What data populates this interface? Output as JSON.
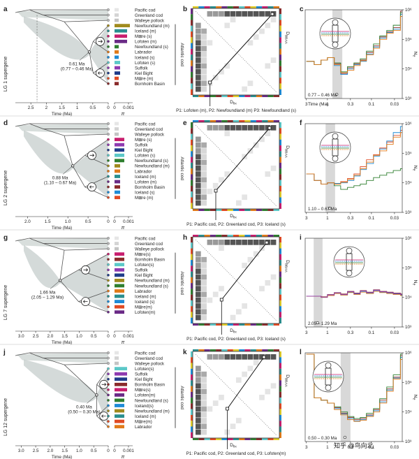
{
  "colors": {
    "frame": "#333333",
    "tree_fill": "#b8c2bf",
    "tree_line": "#555555",
    "heat_dark": "#555555",
    "heat_light": "#e4e4e4",
    "gray_band": "#d8d8d8",
    "pacific": "#e6e6e6",
    "greenland": "#d4d4d4",
    "walleye": "#c4c4c4",
    "newfoundland_m": "#a08a1e",
    "iceland_m": "#2a8f8f",
    "more_s": "#c81e6e",
    "lofoten_m": "#6a2a86",
    "newfoundland_s": "#2f7f2f",
    "labrador": "#e07a1a",
    "iceland_s": "#1e8bd6",
    "lofoten_s": "#5cc8c8",
    "suffolk": "#8e3ab0",
    "kiel": "#1f3c8a",
    "more_m": "#e04a24",
    "bornholm": "#8a2b2b"
  },
  "panels": [
    {
      "supergene": "LG 1 supergene",
      "labels": {
        "tree": "a",
        "matrix": "b",
        "ne": "c"
      },
      "species": [
        "Pacific cod",
        "Greenland cod",
        "Walleye pollock",
        "Newfoundland (m)",
        "Iceland (m)",
        "M⊠re (s)",
        "Lofoten (m)",
        "Newfoundland (s)",
        "Labrador",
        "Iceland (s)",
        "Lofoten (s)",
        "Suffolk",
        "Kiel Bight",
        "M⊠re (m)",
        "Bornholm Basin"
      ],
      "species_colors": [
        "pacific",
        "greenland",
        "walleye",
        "newfoundland_m",
        "iceland_m",
        "more_s",
        "lofoten_m",
        "newfoundland_s",
        "labrador",
        "iceland_s",
        "lofoten_s",
        "suffolk",
        "kiel",
        "more_m",
        "bornholm"
      ],
      "pi_values": [
        0.0003,
        0.0003,
        0.0003,
        0.0011,
        0.0009,
        0.0009,
        0.0009,
        0.0003,
        0.0003,
        0.0003,
        0.0004,
        0.0004,
        0.0004,
        0.0003,
        0.0003
      ],
      "date": "0.61 Ma",
      "date_range": "(0.77 – 0.46 Ma)",
      "date_ma": 0.61,
      "tree_max": 3.0,
      "tree_ticks": [
        "2.5",
        "2",
        "1.5",
        "1",
        "0.5",
        "0"
      ],
      "tree_tick_vals": [
        2.5,
        2.0,
        1.5,
        1.0,
        0.5,
        0.0
      ],
      "dashed_ma": 2.3,
      "atlantic_label": "Atlantic cod",
      "p_line": "P1: Lofoten (m), P2: Newfoundland (m) P3: Newfoundland (s)",
      "ne_range_label": "0.77 – 0.46 Ma",
      "band": [
        0.77,
        0.46
      ]
    },
    {
      "supergene": "LG 2 supergene",
      "labels": {
        "tree": "d",
        "matrix": "e",
        "ne": "f"
      },
      "species": [
        "Pacific cod",
        "Greenland cod",
        "Walleye pollock",
        "M⊠re (s)",
        "Suffolk",
        "Kiel Bight",
        "Lofoten (s)",
        "Newfoundland (s)",
        "Newfoundland (m)",
        "Labrador",
        "Iceland (m)",
        "Lofoten (m)",
        "Bornholm Basin",
        "Iceland (s)",
        "M⊠re (m)"
      ],
      "species_colors": [
        "pacific",
        "greenland",
        "walleye",
        "more_s",
        "suffolk",
        "kiel",
        "lofoten_s",
        "newfoundland_s",
        "newfoundland_m",
        "labrador",
        "iceland_m",
        "lofoten_m",
        "bornholm",
        "iceland_s",
        "more_m"
      ],
      "pi_values": [
        0.0003,
        0.0003,
        0.0003,
        0.0007,
        0.0007,
        0.0007,
        0.0007,
        0.0007,
        0.0004,
        0.0004,
        0.0004,
        0.0004,
        0.0004,
        0.0004,
        0.0004
      ],
      "date": "0.88 Ma",
      "date_range": "(1.10 – 0.67 Ma)",
      "date_ma": 0.88,
      "tree_max": 2.3,
      "tree_ticks": [
        "2.0",
        "1.5",
        "1.0",
        "0.5",
        "0"
      ],
      "tree_tick_vals": [
        2.0,
        1.5,
        1.0,
        0.5,
        0.0
      ],
      "dashed_ma": null,
      "atlantic_label": "Atlantic cod",
      "p_line": "P1: Pacific cod, P2: Greenland cod, P3:   Iceland (s)",
      "ne_range_label": "1.10 – 0.67 Ma",
      "band": [
        1.1,
        0.67
      ]
    },
    {
      "supergene": "LG 7 supergene",
      "labels": {
        "tree": "g",
        "matrix": "h",
        "ne": "i"
      },
      "species": [
        "Pacific cod",
        "Greenland cod",
        "Walleye pollock",
        "M⊠re(s)",
        "Bornholm Basin",
        "Lofoten(s)",
        "Suffolk",
        "Kiel Bight",
        "Newfoundland (m)",
        "Newfoundland (s)",
        "Labrador",
        "Iceland (m)",
        "Iceland (s)",
        "M⊠re(m)",
        "Lofoten(m)"
      ],
      "species_colors": [
        "pacific",
        "greenland",
        "walleye",
        "more_s",
        "bornholm",
        "lofoten_s",
        "suffolk",
        "kiel",
        "newfoundland_m",
        "newfoundland_s",
        "labrador",
        "iceland_m",
        "iceland_s",
        "more_m",
        "lofoten_m"
      ],
      "pi_values": [
        0.0003,
        0.0003,
        0.0003,
        0.0007,
        0.0007,
        0.0007,
        0.0007,
        0.0007,
        0.0007,
        0.0007,
        0.0007,
        0.0007,
        0.0007,
        0.0007,
        0.0007
      ],
      "date": "1.66 Ma",
      "date_range": "(2.05 – 1.29 Ma)",
      "date_ma": 1.66,
      "tree_max": 3.2,
      "tree_ticks": [
        "3.0",
        "2.5",
        "2.0",
        "1.5",
        "1.0",
        "0.5",
        "0"
      ],
      "tree_tick_vals": [
        3.0,
        2.5,
        2.0,
        1.5,
        1.0,
        0.5,
        0.0
      ],
      "dashed_ma": null,
      "atlantic_label": "Atlantic cod",
      "p_line": "P1: Pacific cod, P2: Greenland cod, P3:   Iceland (s)",
      "ne_range_label": "2.05 – 1.29 Ma",
      "band": [
        2.05,
        1.29
      ]
    },
    {
      "supergene": "LG 12 supergene",
      "labels": {
        "tree": "j",
        "matrix": "k",
        "ne": "l"
      },
      "species": [
        "Pacific cod",
        "Greenland cod",
        "Walleye pollock",
        "Lofoten(s)",
        "Suffolk",
        "Kiel Bight",
        "Bornholm Basin",
        "M⊠re(s)",
        "Lofoten(m)",
        "Newfoundland (s)",
        "Iceland(s)",
        "Newfoundland (m)",
        "Iceland (m)",
        "M⊠re(m)",
        "Labrador"
      ],
      "species_colors": [
        "pacific",
        "greenland",
        "walleye",
        "lofoten_s",
        "suffolk",
        "kiel",
        "bornholm",
        "more_s",
        "lofoten_m",
        "newfoundland_s",
        "iceland_s",
        "newfoundland_m",
        "iceland_m",
        "more_m",
        "labrador"
      ],
      "pi_values": [
        0.0003,
        0.0003,
        0.0003,
        0.0009,
        0.0009,
        0.0009,
        0.0009,
        0.0009,
        0.0007,
        0.0007,
        0.0007,
        0.0007,
        0.0007,
        0.0007,
        0.0007
      ],
      "date": "0.40 Ma",
      "date_range": "(0.50 – 0.30 Ma)",
      "date_ma": 0.4,
      "tree_max": 3.2,
      "tree_ticks": [
        "3.0",
        "2.5",
        "2.0",
        "1.5",
        "1.0",
        "0.5",
        "0"
      ],
      "tree_tick_vals": [
        3.0,
        2.5,
        2.0,
        1.5,
        1.0,
        0.5,
        0.0
      ],
      "dashed_ma": null,
      "atlantic_label": "Atlantic cod",
      "p_line": "P1: Pacific cod, P2: Greenland cod, P3:   Lofoten(m)",
      "ne_range_label": "0.50 – 0.30 Ma",
      "band": [
        0.5,
        0.3
      ]
    }
  ],
  "axes": {
    "time_label": "Time (Ma)",
    "pi_label": "π",
    "pi_ticks": [
      "0",
      "0.001"
    ],
    "pi_tick_vals": [
      0,
      0.001
    ],
    "dfix_label": "D",
    "dfix_sub": "fix",
    "dbaba_label": "D",
    "dbaba_sub": "BBAA",
    "ne_x_ticks": [
      "3",
      "1",
      "0.3",
      "0.1",
      "0.03"
    ],
    "ne_x_tick_vals": [
      3,
      1,
      0.3,
      0.1,
      0.03
    ],
    "ne_y_ticks": [
      "10³",
      "10⁴",
      "10⁵",
      "10⁶"
    ],
    "ne_y_tick_vals": [
      1000,
      10000,
      100000,
      1000000
    ],
    "ne_label": "N",
    "ne_sub": "e"
  },
  "watermark": "知乎 @鸟向北",
  "chart_data": [
    {
      "type": "line",
      "title": "",
      "xlabel": "Time (Ma)",
      "ylabel": "Ne",
      "x_scale": "log",
      "y_scale": "log",
      "xlim": [
        3.2,
        0.02
      ],
      "ylim": [
        1000,
        1000000
      ],
      "x": [
        3,
        2,
        1.4,
        1,
        0.7,
        0.5,
        0.35,
        0.25,
        0.18,
        0.13,
        0.09,
        0.065,
        0.045,
        0.032,
        0.022
      ],
      "series": [
        {
          "color": "bornholm",
          "values": [
            18000,
            14000,
            20000,
            24000,
            15000,
            7000,
            11000,
            15000,
            20000,
            36000,
            60000,
            120000,
            180000,
            250000,
            900000
          ]
        },
        {
          "color": "iceland_s",
          "values": [
            18000,
            14000,
            20000,
            24000,
            13000,
            6500,
            10000,
            14000,
            18000,
            32000,
            55000,
            110000,
            170000,
            220000,
            700000
          ]
        },
        {
          "color": "newfoundland_s",
          "values": [
            18000,
            14000,
            20000,
            24000,
            16000,
            8000,
            12000,
            16000,
            22000,
            40000,
            70000,
            130000,
            200000,
            300000,
            800000
          ]
        },
        {
          "color": "labrador",
          "values": [
            18000,
            14000,
            20000,
            24000,
            14000,
            7500,
            9000,
            13000,
            19000,
            30000,
            50000,
            100000,
            160000,
            200000,
            600000
          ]
        }
      ]
    },
    {
      "type": "line",
      "title": "",
      "xlabel": "",
      "ylabel": "Ne",
      "x_scale": "log",
      "y_scale": "log",
      "xlim": [
        3.2,
        0.02
      ],
      "ylim": [
        1000,
        1000000
      ],
      "x": [
        3,
        2,
        1.4,
        1,
        0.7,
        0.5,
        0.35,
        0.25,
        0.18,
        0.13,
        0.09,
        0.065,
        0.045,
        0.032,
        0.022
      ],
      "series": [
        {
          "color": "newfoundland_s",
          "values": [
            20000,
            12000,
            9000,
            10000,
            8000,
            6000,
            7000,
            8000,
            9000,
            12000,
            15000,
            18000,
            22000,
            26000,
            30000
          ]
        },
        {
          "color": "more_m",
          "values": [
            20000,
            12000,
            9000,
            10000,
            9000,
            11000,
            14000,
            20000,
            35000,
            60000,
            90000,
            150000,
            240000,
            400000,
            600000
          ]
        },
        {
          "color": "iceland_s",
          "values": [
            20000,
            12000,
            9000,
            10000,
            9500,
            10000,
            12000,
            17000,
            28000,
            45000,
            80000,
            140000,
            260000,
            500000,
            800000
          ]
        },
        {
          "color": "labrador",
          "values": [
            20000,
            12000,
            9000,
            10000,
            9000,
            10500,
            13000,
            18000,
            30000,
            50000,
            85000,
            120000,
            200000,
            350000,
            500000
          ]
        }
      ]
    },
    {
      "type": "line",
      "title": "",
      "xlabel": "",
      "ylabel": "Ne",
      "x_scale": "log",
      "y_scale": "log",
      "xlim": [
        3.2,
        0.02
      ],
      "ylim": [
        1000,
        1000000
      ],
      "x": [
        3,
        2,
        1.4,
        1,
        0.7,
        0.5,
        0.35,
        0.25,
        0.18,
        0.13,
        0.09,
        0.065,
        0.045,
        0.032,
        0.022
      ],
      "series": [
        {
          "color": "iceland_s",
          "values": [
            11000,
            11000,
            10000,
            12000,
            14000,
            12000,
            15000,
            13000,
            16000,
            14000,
            17000,
            15000,
            14000,
            13000,
            12000
          ]
        },
        {
          "color": "bornholm",
          "values": [
            11000,
            11000,
            10500,
            12500,
            14500,
            13000,
            16000,
            14000,
            17000,
            15000,
            18000,
            16000,
            15000,
            14000,
            13000
          ]
        },
        {
          "color": "labrador",
          "values": [
            11000,
            11000,
            10000,
            11500,
            13500,
            12000,
            14500,
            12500,
            15000,
            13500,
            16000,
            14500,
            13500,
            12500,
            11500
          ]
        },
        {
          "color": "suffolk",
          "values": [
            11000,
            11000,
            10200,
            12200,
            14200,
            12500,
            15500,
            13500,
            16500,
            14500,
            17500,
            15500,
            14500,
            13500,
            12500
          ]
        }
      ]
    },
    {
      "type": "line",
      "title": "",
      "xlabel": "",
      "ylabel": "Ne",
      "x_scale": "log",
      "y_scale": "log",
      "xlim": [
        3.2,
        0.02
      ],
      "ylim": [
        1000,
        1000000
      ],
      "x": [
        3,
        2,
        1.4,
        1,
        0.7,
        0.5,
        0.35,
        0.25,
        0.18,
        0.13,
        0.09,
        0.065,
        0.045,
        0.032,
        0.022
      ],
      "series": [
        {
          "color": "bornholm",
          "values": [
            900000,
            30000,
            25000,
            20000,
            14000,
            9000,
            6500,
            5500,
            6000,
            8000,
            12000,
            25000,
            60000,
            150000,
            800000
          ]
        },
        {
          "color": "iceland_s",
          "values": [
            900000,
            30000,
            25000,
            20000,
            13000,
            8500,
            6000,
            5000,
            5500,
            7500,
            11000,
            22000,
            55000,
            140000,
            700000
          ]
        },
        {
          "color": "newfoundland_s",
          "values": [
            900000,
            30000,
            25000,
            20000,
            15000,
            10000,
            7000,
            6000,
            6500,
            9000,
            13000,
            28000,
            70000,
            180000,
            900000
          ]
        },
        {
          "color": "labrador",
          "values": [
            900000,
            30000,
            25000,
            20000,
            12000,
            8000,
            5500,
            4800,
            5200,
            7000,
            10000,
            20000,
            50000,
            130000,
            600000
          ]
        }
      ]
    }
  ]
}
